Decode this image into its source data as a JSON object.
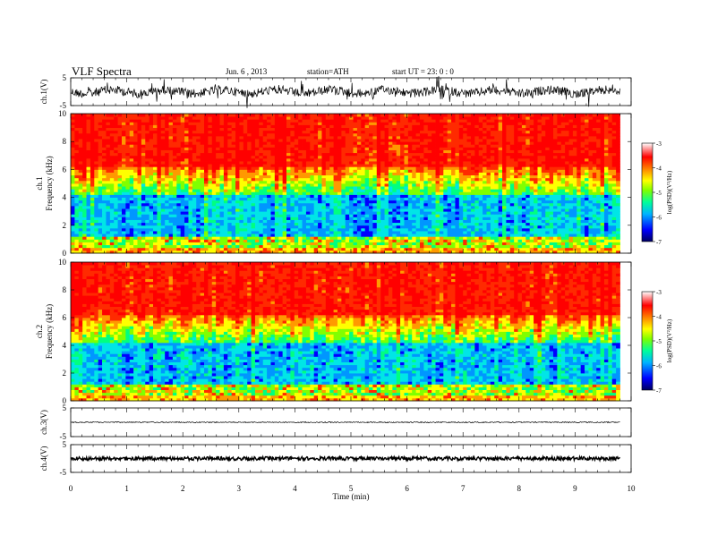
{
  "header": {
    "title": "VLF  Spectra",
    "date": "Jun. 6  , 2013",
    "station": "station=ATH",
    "start": "start  UT  =   23: 0  : 0"
  },
  "chart_data": {
    "type": "heatmap",
    "xlabel": "Time  (min)",
    "x_ticks": [
      0,
      1,
      2,
      3,
      4,
      5,
      6,
      7,
      8,
      9,
      10
    ],
    "xlim": [
      0,
      10
    ],
    "data_end_min": 9.8,
    "panels": [
      {
        "id": "ch1-wave",
        "type": "line",
        "ylabel": "ch.1(V)",
        "ylim": [
          -5,
          5
        ],
        "y_ticks": [
          5,
          -5
        ],
        "amplitude": "large"
      },
      {
        "id": "ch1-spec",
        "type": "heatmap",
        "ylabel_top": "ch.1",
        "ylabel": "Frequency  (kHz)",
        "ylim": [
          0,
          10
        ],
        "y_ticks": [
          0,
          2,
          4,
          6,
          8,
          10
        ],
        "colorbar": {
          "label": "log(PSD)(V²/Hz)",
          "range": [
            -7,
            -3
          ],
          "ticks": [
            -3,
            -4,
            -5,
            -6,
            -7
          ]
        }
      },
      {
        "id": "ch2-spec",
        "type": "heatmap",
        "ylabel_top": "ch.2",
        "ylabel": "Frequency  (kHz)",
        "ylim": [
          0,
          10
        ],
        "y_ticks": [
          0,
          2,
          4,
          6,
          8,
          10
        ],
        "colorbar": {
          "label": "log(PSD)(V²/Hz)",
          "range": [
            -7,
            -3
          ],
          "ticks": [
            -3,
            -4,
            -5,
            -6,
            -7
          ]
        }
      },
      {
        "id": "ch3-wave",
        "type": "line",
        "ylabel": "ch.3(V)",
        "ylim": [
          -5,
          5
        ],
        "y_ticks": [
          5,
          -5
        ],
        "amplitude": "small"
      },
      {
        "id": "ch4-wave",
        "type": "line",
        "ylabel": "ch.4(V)",
        "ylim": [
          -5,
          5
        ],
        "y_ticks": [
          5,
          -5
        ],
        "amplitude": "band"
      }
    ],
    "colormap": [
      "#000080",
      "#0000ff",
      "#00c8ff",
      "#00ff80",
      "#80ff00",
      "#ffff00",
      "#ff8000",
      "#ff0000",
      "#ffffff"
    ]
  }
}
